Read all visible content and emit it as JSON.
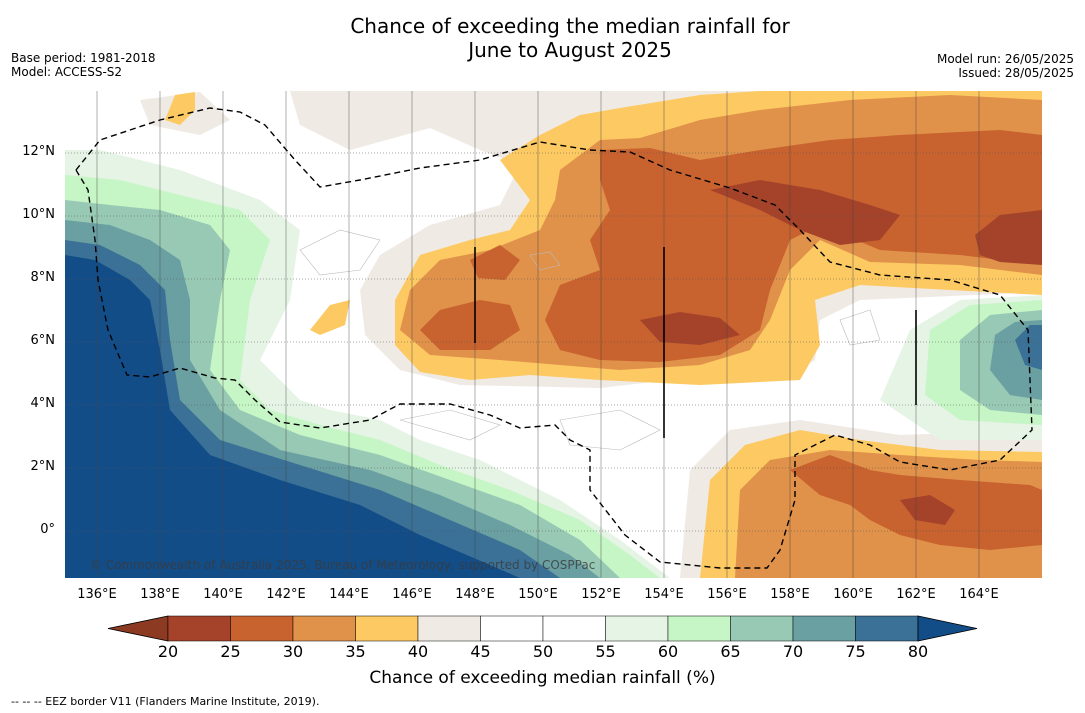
{
  "title_line1": "Chance of exceeding the median rainfall for",
  "title_line2": "June to August 2025",
  "meta_left": [
    "Base period: 1981-2018",
    "Model: ACCESS-S2"
  ],
  "meta_right": [
    "Model run: 26/05/2025",
    "Issued: 28/05/2025"
  ],
  "lat_labels": [
    "12°N",
    "10°N",
    "8°N",
    "6°N",
    "4°N",
    "2°N",
    "0°"
  ],
  "lon_labels": [
    "136°E",
    "138°E",
    "140°E",
    "142°E",
    "144°E",
    "146°E",
    "148°E",
    "150°E",
    "152°E",
    "154°E",
    "156°E",
    "158°E",
    "160°E",
    "162°E",
    "164°E"
  ],
  "copyright": "© Commonwealth of Australia 2025, Bureau of Meteorology, supported by COSPPac",
  "colorbar": {
    "ticks": [
      "20",
      "25",
      "30",
      "35",
      "40",
      "45",
      "50",
      "55",
      "60",
      "65",
      "70",
      "75",
      "80"
    ],
    "colors": [
      "#a4432a",
      "#c8622f",
      "#e0914a",
      "#fdc962",
      "#efeae4",
      "#ffffff",
      "#ffffff",
      "#e5f4e5",
      "#c6f5c6",
      "#98c9b4",
      "#6ba0a3",
      "#3b7196",
      "#134d88"
    ],
    "title": "Chance of exceeding median rainfall (%)"
  },
  "footnote": "-- -- -- EEZ border V11 (Flanders Marine Institute, 2019)."
}
